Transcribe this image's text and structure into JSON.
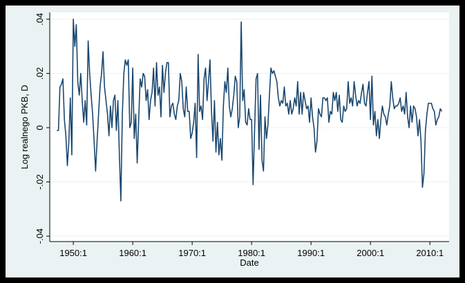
{
  "chart_data": {
    "type": "line",
    "xlabel": "Date",
    "ylabel": "Log realnego PKB, D",
    "x": [
      "1947:2",
      "1947:3",
      "1947:4",
      "1948:1",
      "1948:2",
      "1948:3",
      "1948:4",
      "1949:1",
      "1949:2",
      "1949:3",
      "1949:4",
      "1950:1",
      "1950:2",
      "1950:3",
      "1950:4",
      "1951:1",
      "1951:2",
      "1951:3",
      "1951:4",
      "1952:1",
      "1952:2",
      "1952:3",
      "1952:4",
      "1953:1",
      "1953:2",
      "1953:3",
      "1953:4",
      "1954:1",
      "1954:2",
      "1954:3",
      "1954:4",
      "1955:1",
      "1955:2",
      "1955:3",
      "1955:4",
      "1956:1",
      "1956:2",
      "1956:3",
      "1956:4",
      "1957:1",
      "1957:2",
      "1957:3",
      "1957:4",
      "1958:1",
      "1958:2",
      "1958:3",
      "1958:4",
      "1959:1",
      "1959:2",
      "1959:3",
      "1959:4",
      "1960:1",
      "1960:2",
      "1960:3",
      "1960:4",
      "1961:1",
      "1961:2",
      "1961:3",
      "1961:4",
      "1962:1",
      "1962:2",
      "1962:3",
      "1962:4",
      "1963:1",
      "1963:2",
      "1963:3",
      "1963:4",
      "1964:1",
      "1964:2",
      "1964:3",
      "1964:4",
      "1965:1",
      "1965:2",
      "1965:3",
      "1965:4",
      "1966:1",
      "1966:2",
      "1966:3",
      "1966:4",
      "1967:1",
      "1967:2",
      "1967:3",
      "1967:4",
      "1968:1",
      "1968:2",
      "1968:3",
      "1968:4",
      "1969:1",
      "1969:2",
      "1969:3",
      "1969:4",
      "1970:1",
      "1970:2",
      "1970:3",
      "1970:4",
      "1971:1",
      "1971:2",
      "1971:3",
      "1971:4",
      "1972:1",
      "1972:2",
      "1972:3",
      "1972:4",
      "1973:1",
      "1973:2",
      "1973:3",
      "1973:4",
      "1974:1",
      "1974:2",
      "1974:3",
      "1974:4",
      "1975:1",
      "1975:2",
      "1975:3",
      "1975:4",
      "1976:1",
      "1976:2",
      "1976:3",
      "1976:4",
      "1977:1",
      "1977:2",
      "1977:3",
      "1977:4",
      "1978:1",
      "1978:2",
      "1978:3",
      "1978:4",
      "1979:1",
      "1979:2",
      "1979:3",
      "1979:4",
      "1980:1",
      "1980:2",
      "1980:3",
      "1980:4",
      "1981:1",
      "1981:2",
      "1981:3",
      "1981:4",
      "1982:1",
      "1982:2",
      "1982:3",
      "1982:4",
      "1983:1",
      "1983:2",
      "1983:3",
      "1983:4",
      "1984:1",
      "1984:2",
      "1984:3",
      "1984:4",
      "1985:1",
      "1985:2",
      "1985:3",
      "1985:4",
      "1986:1",
      "1986:2",
      "1986:3",
      "1986:4",
      "1987:1",
      "1987:2",
      "1987:3",
      "1987:4",
      "1988:1",
      "1988:2",
      "1988:3",
      "1988:4",
      "1989:1",
      "1989:2",
      "1989:3",
      "1989:4",
      "1990:1",
      "1990:2",
      "1990:3",
      "1990:4",
      "1991:1",
      "1991:2",
      "1991:3",
      "1991:4",
      "1992:1",
      "1992:2",
      "1992:3",
      "1992:4",
      "1993:1",
      "1993:2",
      "1993:3",
      "1993:4",
      "1994:1",
      "1994:2",
      "1994:3",
      "1994:4",
      "1995:1",
      "1995:2",
      "1995:3",
      "1995:4",
      "1996:1",
      "1996:2",
      "1996:3",
      "1996:4",
      "1997:1",
      "1997:2",
      "1997:3",
      "1997:4",
      "1998:1",
      "1998:2",
      "1998:3",
      "1998:4",
      "1999:1",
      "1999:2",
      "1999:3",
      "1999:4",
      "2000:1",
      "2000:2",
      "2000:3",
      "2000:4",
      "2001:1",
      "2001:2",
      "2001:3",
      "2001:4",
      "2002:1",
      "2002:2",
      "2002:3",
      "2002:4",
      "2003:1",
      "2003:2",
      "2003:3",
      "2003:4",
      "2004:1",
      "2004:2",
      "2004:3",
      "2004:4",
      "2005:1",
      "2005:2",
      "2005:3",
      "2005:4",
      "2006:1",
      "2006:2",
      "2006:3",
      "2006:4",
      "2007:1",
      "2007:2",
      "2007:3",
      "2007:4",
      "2008:1",
      "2008:2",
      "2008:3",
      "2008:4",
      "2009:1",
      "2009:2",
      "2009:3",
      "2009:4",
      "2010:1",
      "2010:2",
      "2010:3",
      "2010:4",
      "2011:1",
      "2011:2",
      "2011:3",
      "2011:4",
      "2012:1"
    ],
    "series": [
      {
        "color": "#1a476f",
        "values": [
          -0.001,
          -0.001,
          0.015,
          0.016,
          0.018,
          0.003,
          -0.003,
          -0.014,
          -0.005,
          0.011,
          -0.01,
          0.04,
          0.03,
          0.038,
          0.017,
          0.012,
          0.02,
          0.01,
          0.002,
          0.01,
          0.001,
          0.032,
          0.02,
          0.012,
          0.005,
          -0.005,
          -0.016,
          -0.005,
          0.005,
          0.015,
          0.02,
          0.028,
          0.015,
          0.01,
          0.005,
          -0.003,
          0.008,
          0.0,
          0.01,
          0.012,
          -0.001,
          0.01,
          -0.01,
          -0.027,
          0.005,
          0.02,
          0.025,
          0.023,
          0.025,
          0.0,
          0.002,
          0.022,
          -0.004,
          0.005,
          -0.013,
          0.003,
          0.018,
          0.015,
          0.02,
          0.019,
          0.01,
          0.014,
          0.003,
          0.01,
          0.013,
          0.022,
          0.008,
          0.024,
          0.012,
          0.015,
          0.004,
          0.023,
          0.013,
          0.02,
          0.024,
          0.024,
          0.004,
          0.008,
          0.009,
          0.005,
          0.003,
          0.008,
          0.01,
          0.02,
          0.017,
          0.007,
          0.004,
          0.015,
          0.006,
          0.006,
          -0.004,
          -0.002,
          0.002,
          0.009,
          -0.011,
          0.027,
          0.006,
          0.008,
          0.003,
          0.018,
          0.022,
          0.01,
          0.017,
          0.025,
          0.006,
          -0.005,
          0.01,
          -0.009,
          0.002,
          -0.01,
          -0.004,
          -0.012,
          0.008,
          0.017,
          0.013,
          0.022,
          0.008,
          0.004,
          0.007,
          0.012,
          0.019,
          0.017,
          0.0,
          0.004,
          0.039,
          0.01,
          0.014,
          0.002,
          0.001,
          0.007,
          0.003,
          0.003,
          -0.021,
          -0.001,
          0.018,
          0.02,
          -0.008,
          0.012,
          -0.012,
          -0.016,
          0.004,
          -0.004,
          0.001,
          0.012,
          0.022,
          0.02,
          0.021,
          0.019,
          0.017,
          0.011,
          0.008,
          0.01,
          0.009,
          0.015,
          0.008,
          0.009,
          0.005,
          0.01,
          0.005,
          0.007,
          0.011,
          0.008,
          0.017,
          0.005,
          0.013,
          0.005,
          0.013,
          0.01,
          0.007,
          0.008,
          0.002,
          0.011,
          0.004,
          0.0,
          -0.009,
          -0.005,
          0.007,
          0.005,
          0.004,
          0.011,
          0.011,
          0.01,
          0.011,
          0.002,
          0.006,
          0.005,
          0.013,
          0.01,
          0.013,
          0.006,
          0.012,
          0.003,
          0.002,
          0.008,
          0.006,
          0.007,
          0.017,
          0.009,
          0.011,
          0.008,
          0.017,
          0.012,
          0.008,
          0.01,
          0.009,
          0.013,
          0.016,
          0.009,
          0.008,
          0.013,
          0.017,
          0.003,
          0.019,
          0.001,
          0.006,
          -0.003,
          0.003,
          -0.004,
          0.003,
          0.008,
          0.005,
          0.004,
          0.001,
          0.005,
          0.008,
          0.017,
          0.011,
          0.007,
          0.008,
          0.008,
          0.009,
          0.011,
          0.006,
          0.008,
          0.005,
          0.013,
          0.004,
          0.0,
          0.008,
          0.002,
          0.008,
          0.007,
          0.004,
          -0.003,
          0.003,
          -0.005,
          -0.022,
          -0.017,
          -0.001,
          0.005,
          0.009,
          0.009,
          0.009,
          0.007,
          0.006,
          0.001,
          0.003,
          0.004,
          0.007,
          0.006
        ]
      }
    ],
    "xlim": [
      "1946:3",
      "2013:1"
    ],
    "xticks": [
      "1950:1",
      "1960:1",
      "1970:1",
      "1980:1",
      "1990:1",
      "2000:1",
      "2010:1"
    ],
    "ylim": [
      -0.042,
      0.0425
    ],
    "yticks": [
      {
        "value": -0.04,
        "label": "-.04"
      },
      {
        "value": -0.02,
        "label": "-.02"
      },
      0,
      {
        "value": 0.02,
        "label": ".02"
      },
      {
        "value": 0.04,
        "label": ".04"
      }
    ],
    "grid": true
  }
}
